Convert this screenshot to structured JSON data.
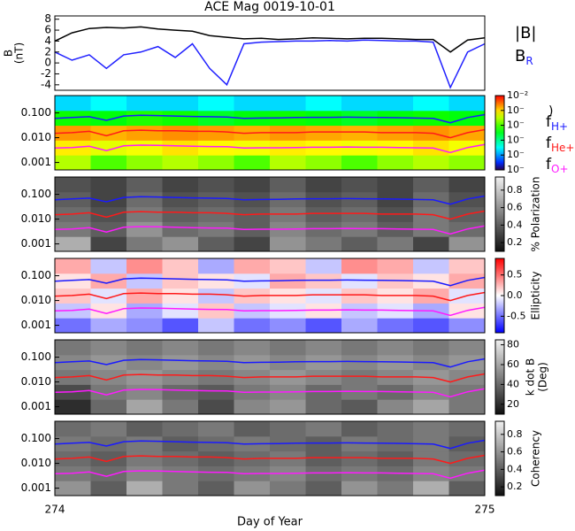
{
  "chart_data": [
    {
      "type": "line",
      "title": "ACE Mag 0019-10-01",
      "ylabel": "B",
      "ylabel_units": "(nT)",
      "xlim": [
        274,
        275
      ],
      "ylim": [
        -5,
        8.6
      ],
      "yticks": [
        -4,
        -2,
        0,
        2,
        4,
        6,
        8
      ],
      "x": [
        274.0,
        274.04,
        274.08,
        274.12,
        274.16,
        274.2,
        274.24,
        274.28,
        274.32,
        274.36,
        274.4,
        274.44,
        274.48,
        274.52,
        274.56,
        274.6,
        274.64,
        274.68,
        274.72,
        274.76,
        274.8,
        274.84,
        274.88,
        274.92,
        274.96,
        275.0
      ],
      "series": [
        {
          "name": "|B|",
          "color": "#000000",
          "values": [
            4.0,
            5.5,
            6.3,
            6.5,
            6.4,
            6.6,
            6.2,
            6.0,
            5.8,
            5.0,
            4.7,
            4.4,
            4.5,
            4.3,
            4.4,
            4.6,
            4.5,
            4.4,
            4.5,
            4.5,
            4.4,
            4.3,
            4.3,
            2.0,
            4.2,
            4.6
          ]
        },
        {
          "name": "B",
          "name_sub": "R",
          "color": "#2020ff",
          "values": [
            2.0,
            0.5,
            1.5,
            -1.0,
            1.5,
            2.0,
            3.0,
            1.0,
            3.5,
            -1.0,
            -4.0,
            3.5,
            3.8,
            3.9,
            4.0,
            4.0,
            4.1,
            4.0,
            4.2,
            4.1,
            4.0,
            4.0,
            3.8,
            -4.5,
            2.0,
            3.5
          ]
        }
      ]
    },
    {
      "type": "spectrogram",
      "ylog": true,
      "ylim": [
        0.0005,
        0.5
      ],
      "yticks": [
        {
          "value": 0.001,
          "label": "0.001"
        },
        {
          "value": 0.01,
          "label": "0.010"
        },
        {
          "value": 0.1,
          "label": "0.100"
        }
      ],
      "colormap": "rainbow",
      "zlog": true,
      "zlim": [
        1e-07,
        0.01
      ],
      "zlabel": ")",
      "zticks": [
        {
          "value": 0.01,
          "label": "10⁻²"
        },
        {
          "value": 0.001,
          "label": "10⁻"
        },
        {
          "value": 0.0001,
          "label": "10⁻"
        },
        {
          "value": 1e-05,
          "label": "10⁻"
        },
        {
          "value": 1e-06,
          "label": "10⁻"
        },
        {
          "value": 1e-07,
          "label": "10⁻"
        }
      ],
      "z": [
        [
          0.0003,
          0.0001,
          0.0002,
          0.0003,
          0.0002,
          0.0001,
          0.0003,
          0.0002,
          0.0001,
          0.0002,
          0.0003,
          0.0002
        ],
        [
          0.0008,
          0.0005,
          0.0006,
          0.0009,
          0.0007,
          0.0006,
          0.0008,
          0.0007,
          0.0006,
          0.0007,
          0.0009,
          0.0006
        ],
        [
          0.002,
          0.0015,
          0.0018,
          0.0022,
          0.0019,
          0.0016,
          0.002,
          0.0017,
          0.0015,
          0.0018,
          0.0021,
          0.0017
        ],
        [
          5e-05,
          4e-05,
          6e-05,
          5e-05,
          3e-05,
          4e-05,
          5e-05,
          4e-05,
          3e-05,
          4e-05,
          5e-05,
          4e-05
        ],
        [
          2e-06,
          3e-06,
          2e-06,
          2e-06,
          3e-06,
          2e-06,
          2e-06,
          3e-06,
          2e-06,
          2e-06,
          3e-06,
          2e-06
        ]
      ],
      "x": [
        274.0,
        274.04,
        274.08,
        274.12,
        274.16,
        274.2,
        274.24,
        274.28,
        274.32,
        274.36,
        274.4,
        274.44,
        274.48,
        274.52,
        274.56,
        274.6,
        274.64,
        274.68,
        274.72,
        274.76,
        274.8,
        274.84,
        274.88,
        274.92,
        274.96,
        275.0
      ],
      "series": [
        {
          "name": "f",
          "name_sub": "H+",
          "color": "#1a1aff",
          "values": [
            0.06,
            0.065,
            0.07,
            0.05,
            0.075,
            0.08,
            0.078,
            0.075,
            0.072,
            0.07,
            0.068,
            0.06,
            0.062,
            0.063,
            0.065,
            0.066,
            0.066,
            0.067,
            0.066,
            0.065,
            0.064,
            0.062,
            0.06,
            0.04,
            0.065,
            0.085
          ]
        },
        {
          "name": "f",
          "name_sub": "He+",
          "color": "#ff1a1a",
          "values": [
            0.015,
            0.016,
            0.018,
            0.012,
            0.019,
            0.02,
            0.019,
            0.019,
            0.018,
            0.018,
            0.017,
            0.015,
            0.016,
            0.016,
            0.016,
            0.017,
            0.017,
            0.017,
            0.017,
            0.016,
            0.016,
            0.016,
            0.015,
            0.01,
            0.016,
            0.021
          ]
        },
        {
          "name": "f",
          "name_sub": "O+",
          "color": "#ff1aff",
          "values": [
            0.0038,
            0.004,
            0.0045,
            0.003,
            0.0047,
            0.005,
            0.0049,
            0.0047,
            0.0045,
            0.0044,
            0.0043,
            0.0038,
            0.0039,
            0.0039,
            0.004,
            0.0041,
            0.0041,
            0.0042,
            0.0041,
            0.0041,
            0.004,
            0.0039,
            0.0038,
            0.0025,
            0.004,
            0.0053
          ]
        }
      ]
    },
    {
      "type": "spectrogram",
      "ylog": true,
      "ylim": [
        0.0005,
        0.5
      ],
      "yticks": [
        {
          "value": 0.001,
          "label": "0.001"
        },
        {
          "value": 0.01,
          "label": "0.010"
        },
        {
          "value": 0.1,
          "label": "0.100"
        }
      ],
      "colormap": "gray",
      "zlim": [
        0.1,
        0.95
      ],
      "zlabel": "% Polarization",
      "zticks": [
        0.2,
        0.4,
        0.6,
        0.8
      ],
      "z": [
        [
          0.7,
          0.3,
          0.5,
          0.6,
          0.4,
          0.3,
          0.6,
          0.5,
          0.4,
          0.5,
          0.3,
          0.6
        ],
        [
          0.5,
          0.4,
          0.6,
          0.45,
          0.5,
          0.4,
          0.55,
          0.45,
          0.5,
          0.4,
          0.5,
          0.45
        ],
        [
          0.45,
          0.35,
          0.5,
          0.4,
          0.45,
          0.4,
          0.5,
          0.4,
          0.45,
          0.35,
          0.5,
          0.4
        ],
        [
          0.4,
          0.3,
          0.45,
          0.35,
          0.4,
          0.35,
          0.45,
          0.35,
          0.4,
          0.3,
          0.45,
          0.35
        ],
        [
          0.35,
          0.3,
          0.4,
          0.3,
          0.35,
          0.3,
          0.4,
          0.3,
          0.35,
          0.3,
          0.4,
          0.3
        ]
      ]
    },
    {
      "type": "spectrogram",
      "ylog": true,
      "ylim": [
        0.0005,
        0.5
      ],
      "yticks": [
        {
          "value": 0.001,
          "label": "0.001"
        },
        {
          "value": 0.01,
          "label": "0.010"
        },
        {
          "value": 0.1,
          "label": "0.100"
        }
      ],
      "colormap": "bwr",
      "zlim": [
        -0.9,
        0.9
      ],
      "zlabel": "Ellipticity",
      "zticks": [
        {
          "value": -0.5,
          "label": "-0.5"
        },
        {
          "value": 0,
          "label": "0.0"
        },
        0.5
      ],
      "z": [
        [
          -0.5,
          -0.3,
          -0.4,
          -0.6,
          -0.2,
          -0.5,
          -0.4,
          -0.6,
          -0.3,
          -0.5,
          -0.6,
          -0.4
        ],
        [
          -0.2,
          0.1,
          -0.3,
          -0.1,
          0.2,
          -0.2,
          -0.1,
          0.1,
          -0.2,
          -0.1,
          -0.3,
          0.1
        ],
        [
          0.2,
          -0.1,
          0.3,
          0.1,
          -0.2,
          0.2,
          0.1,
          -0.1,
          0.2,
          0.1,
          0.3,
          -0.1
        ],
        [
          0.1,
          0.3,
          -0.2,
          0.2,
          0.1,
          -0.1,
          0.3,
          0.2,
          -0.1,
          0.2,
          0.1,
          0.3
        ],
        [
          0.3,
          -0.2,
          0.4,
          0.2,
          -0.3,
          0.3,
          0.2,
          -0.2,
          0.4,
          0.3,
          -0.2,
          0.2
        ]
      ]
    },
    {
      "type": "spectrogram",
      "ylog": true,
      "ylim": [
        0.0005,
        0.5
      ],
      "yticks": [
        {
          "value": 0.001,
          "label": "0.001"
        },
        {
          "value": 0.01,
          "label": "0.010"
        },
        {
          "value": 0.1,
          "label": "0.100"
        }
      ],
      "colormap": "gray",
      "zlim": [
        10,
        85
      ],
      "zlabel": "k dot B",
      "zlabel_units": "(Deg)",
      "zticks": [
        20,
        40,
        60,
        80
      ],
      "z": [
        [
          20,
          40,
          60,
          45,
          30,
          50,
          55,
          40,
          35,
          50,
          60,
          45
        ],
        [
          30,
          45,
          50,
          40,
          35,
          45,
          50,
          40,
          45,
          40,
          50,
          45
        ],
        [
          45,
          50,
          55,
          50,
          45,
          50,
          55,
          50,
          45,
          50,
          55,
          50
        ],
        [
          50,
          55,
          50,
          55,
          50,
          55,
          50,
          55,
          50,
          55,
          50,
          55
        ],
        [
          45,
          50,
          45,
          50,
          45,
          50,
          45,
          50,
          45,
          50,
          45,
          50
        ]
      ]
    },
    {
      "type": "spectrogram",
      "ylog": true,
      "ylim": [
        0.0005,
        0.5
      ],
      "yticks": [
        {
          "value": 0.001,
          "label": "0.001"
        },
        {
          "value": 0.01,
          "label": "0.010"
        },
        {
          "value": 0.1,
          "label": "0.100"
        }
      ],
      "colormap": "gray",
      "zlim": [
        0.1,
        0.95
      ],
      "zlabel": "Coherency",
      "zticks": [
        0.2,
        0.4,
        0.6,
        0.8
      ],
      "z": [
        [
          0.6,
          0.4,
          0.7,
          0.5,
          0.4,
          0.6,
          0.5,
          0.4,
          0.6,
          0.5,
          0.7,
          0.4
        ],
        [
          0.5,
          0.45,
          0.55,
          0.5,
          0.45,
          0.5,
          0.55,
          0.45,
          0.5,
          0.45,
          0.55,
          0.5
        ],
        [
          0.45,
          0.4,
          0.5,
          0.45,
          0.4,
          0.45,
          0.5,
          0.4,
          0.45,
          0.4,
          0.5,
          0.45
        ],
        [
          0.5,
          0.45,
          0.5,
          0.4,
          0.45,
          0.5,
          0.45,
          0.4,
          0.5,
          0.45,
          0.5,
          0.4
        ],
        [
          0.45,
          0.5,
          0.4,
          0.45,
          0.5,
          0.4,
          0.45,
          0.5,
          0.4,
          0.45,
          0.5,
          0.45
        ]
      ],
      "xticks": [
        274,
        275
      ],
      "xlabel": "Day of Year"
    }
  ]
}
